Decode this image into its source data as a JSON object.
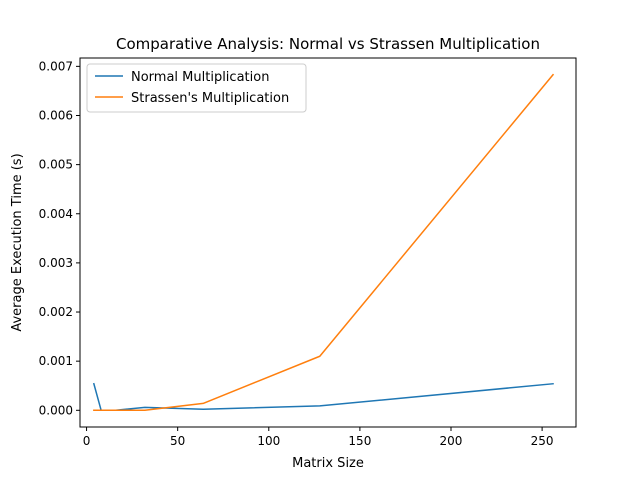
{
  "chart_data": {
    "type": "line",
    "title": "Comparative Analysis: Normal vs Strassen Multiplication",
    "xlabel": "Matrix Size",
    "ylabel": "Average Execution Time (s)",
    "xlim": [
      -3.6,
      268.6
    ],
    "ylim": [
      -0.00034,
      0.00717
    ],
    "xticks": [
      0,
      50,
      100,
      150,
      200,
      250
    ],
    "xtick_labels": [
      "0",
      "50",
      "100",
      "150",
      "200",
      "250"
    ],
    "yticks": [
      0,
      0.001,
      0.002,
      0.003,
      0.004,
      0.005,
      0.006,
      0.007
    ],
    "ytick_labels": [
      "0.000",
      "0.001",
      "0.002",
      "0.003",
      "0.004",
      "0.005",
      "0.006",
      "0.007"
    ],
    "grid": false,
    "legend_position": "upper-left",
    "x": [
      4,
      8,
      16,
      32,
      64,
      128,
      256
    ],
    "series": [
      {
        "name": "Normal Multiplication",
        "color": "#1f77b4",
        "values": [
          0.00054,
          0.0,
          0.0,
          6e-05,
          2e-05,
          9e-05,
          0.00054
        ]
      },
      {
        "name": "Strassen's Multiplication",
        "color": "#ff7f0e",
        "values": [
          0.0,
          0.0,
          0.0,
          0.0,
          0.00014,
          0.0011,
          0.00683
        ]
      }
    ]
  }
}
